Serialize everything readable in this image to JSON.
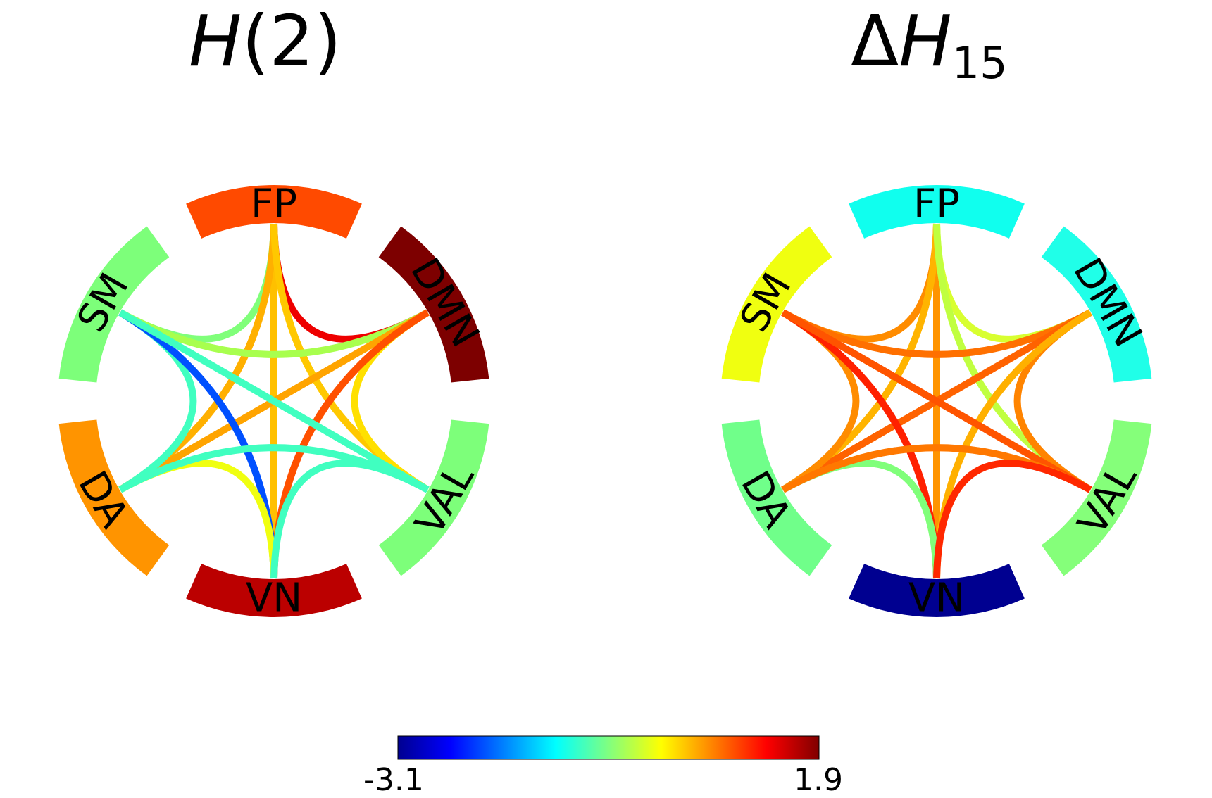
{
  "panels": [
    {
      "id": "left",
      "title": {
        "symbol": "H",
        "suffix": "(2)"
      },
      "node_colors": {
        "FP": "#ff4a00",
        "DMN": "#7d0000",
        "VAL": "#7dff7a",
        "VN": "#bb0000",
        "DA": "#ff9400",
        "SM": "#7dff7a"
      },
      "edges": [
        {
          "a": "FP",
          "b": "DMN",
          "color": "#ee0000"
        },
        {
          "a": "FP",
          "b": "SM",
          "color": "#80ff7a"
        },
        {
          "a": "FP",
          "b": "VN",
          "color": "#ffc000"
        },
        {
          "a": "FP",
          "b": "DA",
          "color": "#ffb000"
        },
        {
          "a": "FP",
          "b": "VAL",
          "color": "#ffc800"
        },
        {
          "a": "DMN",
          "b": "SM",
          "color": "#a8ff4e"
        },
        {
          "a": "DMN",
          "b": "VAL",
          "color": "#ffe000"
        },
        {
          "a": "DMN",
          "b": "DA",
          "color": "#ffa400"
        },
        {
          "a": "DMN",
          "b": "VN",
          "color": "#ff5000"
        },
        {
          "a": "SM",
          "b": "DA",
          "color": "#40ffc0"
        },
        {
          "a": "SM",
          "b": "VN",
          "color": "#0050ff"
        },
        {
          "a": "SM",
          "b": "VAL",
          "color": "#40ffc0"
        },
        {
          "a": "DA",
          "b": "VN",
          "color": "#f0ff10"
        },
        {
          "a": "DA",
          "b": "VAL",
          "color": "#40ffc0"
        },
        {
          "a": "VAL",
          "b": "VN",
          "color": "#40ffc0"
        }
      ]
    },
    {
      "id": "right",
      "title": {
        "prefix": "Δ",
        "symbol": "H",
        "subscript": "15"
      },
      "node_colors": {
        "FP": "#10ffee",
        "DMN": "#20ffe8",
        "VAL": "#85ff7a",
        "VN": "#000090",
        "DA": "#70ff8a",
        "SM": "#f0ff10"
      },
      "edges": [
        {
          "a": "FP",
          "b": "DMN",
          "color": "#d8ff30"
        },
        {
          "a": "FP",
          "b": "SM",
          "color": "#ff8c00"
        },
        {
          "a": "FP",
          "b": "VN",
          "color": "#ff9400"
        },
        {
          "a": "FP",
          "b": "DA",
          "color": "#ffb400"
        },
        {
          "a": "FP",
          "b": "VAL",
          "color": "#c0ff40"
        },
        {
          "a": "DMN",
          "b": "SM",
          "color": "#ff7000"
        },
        {
          "a": "DMN",
          "b": "VAL",
          "color": "#ff8400"
        },
        {
          "a": "DMN",
          "b": "DA",
          "color": "#ff6200"
        },
        {
          "a": "DMN",
          "b": "VN",
          "color": "#ffb000"
        },
        {
          "a": "SM",
          "b": "DA",
          "color": "#ff8c00"
        },
        {
          "a": "SM",
          "b": "VN",
          "color": "#ff2000"
        },
        {
          "a": "SM",
          "b": "VAL",
          "color": "#ff5400"
        },
        {
          "a": "DA",
          "b": "VN",
          "color": "#80ff7a"
        },
        {
          "a": "DA",
          "b": "VAL",
          "color": "#ff7800"
        },
        {
          "a": "VAL",
          "b": "VN",
          "color": "#ff2800"
        }
      ]
    }
  ],
  "nodes": [
    "FP",
    "DMN",
    "VAL",
    "VN",
    "DA",
    "SM"
  ],
  "colorbar": {
    "colormap": "jet",
    "min_label": "-3.1",
    "max_label": "1.9",
    "stops": [
      "#000090",
      "#0000ff",
      "#0080ff",
      "#00ffff",
      "#80ff80",
      "#ffff00",
      "#ff8000",
      "#ff0000",
      "#800000"
    ]
  }
}
